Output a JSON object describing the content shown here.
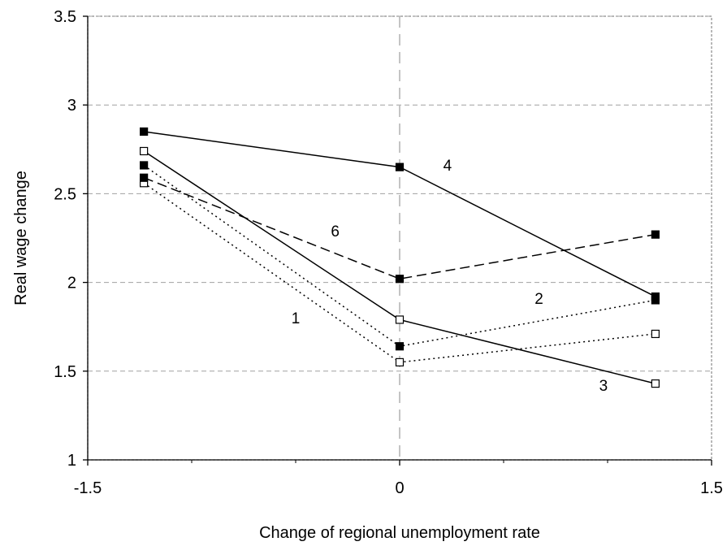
{
  "chart_data": {
    "type": "line",
    "xlabel": "Change of regional unemployment rate",
    "ylabel": "Real wage change",
    "xlim": [
      -1.5,
      1.5
    ],
    "ylim": [
      1,
      3.5
    ],
    "x_ticks": [
      -1.5,
      0,
      1.5
    ],
    "x_tick_labels": [
      "-1.5",
      "0",
      "1.5"
    ],
    "y_ticks": [
      1,
      1.5,
      2,
      2.5,
      3,
      3.5
    ],
    "y_tick_labels": [
      "1",
      "1.5",
      "2",
      "2.5",
      "3",
      "3.5"
    ],
    "grid": "horizontal dashed, vertical dashed at x=0",
    "x": [
      -1.23,
      0,
      1.23
    ],
    "series": [
      {
        "name": "1",
        "values": [
          2.56,
          1.55,
          1.71
        ],
        "line": "dotted",
        "marker": "open-square",
        "color": "#000000",
        "label_at": [
          -0.5,
          1.77
        ]
      },
      {
        "name": "2",
        "values": [
          2.66,
          1.64,
          1.9
        ],
        "line": "dotted",
        "marker": "filled-square",
        "color": "#000000",
        "label_at": [
          0.67,
          1.88
        ]
      },
      {
        "name": "3",
        "values": [
          2.74,
          1.79,
          1.43
        ],
        "line": "solid",
        "marker": "open-square",
        "color": "#000000",
        "label_at": [
          0.98,
          1.39
        ]
      },
      {
        "name": "4",
        "values": [
          2.85,
          2.65,
          1.92
        ],
        "line": "solid",
        "marker": "filled-square",
        "color": "#000000",
        "label_at": [
          0.23,
          2.63
        ]
      },
      {
        "name": "6",
        "values": [
          2.59,
          2.02,
          2.27
        ],
        "line": "dashed",
        "marker": "filled-square",
        "color": "#000000",
        "label_at": [
          -0.31,
          2.26
        ]
      }
    ]
  }
}
